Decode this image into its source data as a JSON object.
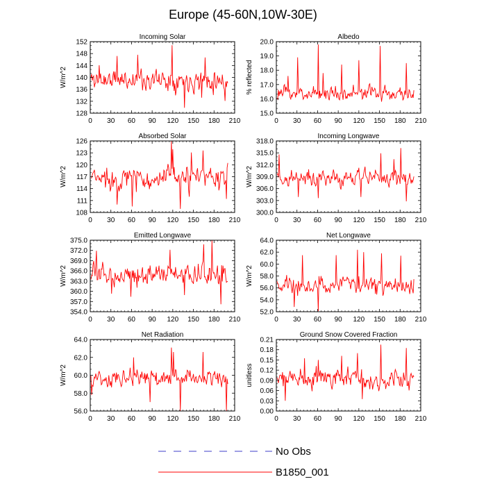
{
  "title": "Europe (45-60N,10W-30E)",
  "colors": {
    "model": "#ff0000",
    "obs": "#3c3cc8",
    "frame": "#000000"
  },
  "legend": [
    {
      "label": "No Obs",
      "style": "dashed",
      "color": "#3c3cc8"
    },
    {
      "label": "B1850_001",
      "style": "solid",
      "color": "#ff0000"
    }
  ],
  "chart_data": [
    {
      "type": "line",
      "title": "Incoming Solar",
      "ylabel": "W/m^2",
      "xlim": [
        0,
        210
      ],
      "xticks": [
        0,
        30,
        60,
        90,
        120,
        150,
        180,
        210
      ],
      "ylim": [
        128,
        152
      ],
      "yticks": [
        "128",
        "132",
        "136",
        "140",
        "144",
        "148",
        "152"
      ],
      "n": 200,
      "mean": 139.3,
      "amp": 3.2,
      "seed": 11,
      "peaks": [
        [
          118,
          150.8
        ],
        [
          136,
          129.8
        ],
        [
          195,
          132.1
        ],
        [
          68,
          147.6
        ],
        [
          166,
          146.7
        ],
        [
          38,
          147.2
        ],
        [
          161,
          133.2
        ],
        [
          12,
          144.1
        ]
      ],
      "series": [
        {
          "name": "B1850_001",
          "color": "#ff0000"
        }
      ]
    },
    {
      "type": "line",
      "title": "Albedo",
      "ylabel": "% reflected",
      "xlim": [
        0,
        210
      ],
      "xticks": [
        0,
        30,
        60,
        90,
        120,
        150,
        180,
        210
      ],
      "ylim": [
        15,
        20
      ],
      "yticks": [
        "15.0",
        "16.0",
        "17.0",
        "18.0",
        "19.0",
        "20.0"
      ],
      "n": 200,
      "mean": 16.4,
      "amp": 0.45,
      "seed": 23,
      "peaks": [
        [
          60,
          19.8
        ],
        [
          150,
          19.7
        ],
        [
          30,
          18.9
        ],
        [
          119,
          18.7
        ],
        [
          94,
          18.4
        ],
        [
          188,
          18.5
        ],
        [
          67,
          17.8
        ],
        [
          16,
          17.6
        ]
      ],
      "series": [
        {
          "name": "B1850_001",
          "color": "#ff0000"
        }
      ]
    },
    {
      "type": "line",
      "title": "Absorbed Solar",
      "ylabel": "W/m^2",
      "xlim": [
        0,
        210
      ],
      "xticks": [
        0,
        30,
        60,
        90,
        120,
        150,
        180,
        210
      ],
      "ylim": [
        108,
        126
      ],
      "yticks": [
        "108",
        "111",
        "114",
        "117",
        "120",
        "123",
        "126"
      ],
      "n": 200,
      "mean": 116.6,
      "amp": 2.6,
      "seed": 37,
      "peaks": [
        [
          117,
          126.0
        ],
        [
          130,
          108.9
        ],
        [
          163,
          123.6
        ],
        [
          60,
          109.5
        ],
        [
          146,
          123.1
        ],
        [
          38,
          110.0
        ],
        [
          119,
          123.9
        ],
        [
          197,
          111.4
        ]
      ],
      "series": [
        {
          "name": "B1850_001",
          "color": "#ff0000"
        }
      ]
    },
    {
      "type": "line",
      "title": "Incoming Longwave",
      "ylabel": "W/m^2",
      "xlim": [
        0,
        210
      ],
      "xticks": [
        0,
        30,
        60,
        90,
        120,
        150,
        180,
        210
      ],
      "ylim": [
        300,
        318
      ],
      "yticks": [
        "300.0",
        "303.0",
        "306.0",
        "309.0",
        "312.0",
        "315.0",
        "318.0"
      ],
      "n": 200,
      "mean": 308.6,
      "amp": 1.9,
      "seed": 41,
      "peaks": [
        [
          180,
          316.2
        ],
        [
          3,
          314.6
        ],
        [
          188,
          302.8
        ],
        [
          151,
          314.9
        ],
        [
          60,
          303.6
        ],
        [
          31,
          303.9
        ],
        [
          122,
          303.9
        ],
        [
          170,
          313.4
        ]
      ],
      "series": [
        {
          "name": "B1850_001",
          "color": "#ff0000"
        }
      ]
    },
    {
      "type": "line",
      "title": "Emitted Longwave",
      "ylabel": "W/m^2",
      "xlim": [
        0,
        210
      ],
      "xticks": [
        0,
        30,
        60,
        90,
        120,
        150,
        180,
        210
      ],
      "ylim": [
        354,
        375
      ],
      "yticks": [
        "354.0",
        "357.0",
        "360.0",
        "363.0",
        "366.0",
        "369.0",
        "372.0",
        "375.0"
      ],
      "n": 200,
      "mean": 365.0,
      "amp": 2.6,
      "seed": 53,
      "peaks": [
        [
          176,
          375.0
        ],
        [
          189,
          356.2
        ],
        [
          164,
          373.8
        ],
        [
          58,
          358.4
        ],
        [
          115,
          372.2
        ],
        [
          30,
          359.3
        ],
        [
          8,
          371.9
        ],
        [
          136,
          358.9
        ]
      ],
      "series": [
        {
          "name": "B1850_001",
          "color": "#ff0000"
        }
      ]
    },
    {
      "type": "line",
      "title": "Net Longwave",
      "ylabel": "W/m^2",
      "xlim": [
        0,
        210
      ],
      "xticks": [
        0,
        30,
        60,
        90,
        120,
        150,
        180,
        210
      ],
      "ylim": [
        52,
        64
      ],
      "yticks": [
        "52.0",
        "54.0",
        "56.0",
        "58.0",
        "60.0",
        "62.0",
        "64.0"
      ],
      "n": 200,
      "mean": 56.4,
      "amp": 1.4,
      "seed": 67,
      "peaks": [
        [
          117,
          62.4
        ],
        [
          60,
          52.1
        ],
        [
          37,
          61.5
        ],
        [
          86,
          61.5
        ],
        [
          152,
          61.8
        ],
        [
          25,
          52.8
        ],
        [
          126,
          62.0
        ],
        [
          180,
          61.4
        ]
      ],
      "series": [
        {
          "name": "B1850_001",
          "color": "#ff0000"
        }
      ]
    },
    {
      "type": "line",
      "title": "Net Radiation",
      "ylabel": "W/m^2",
      "xlim": [
        0,
        210
      ],
      "xticks": [
        0,
        30,
        60,
        90,
        120,
        150,
        180,
        210
      ],
      "ylim": [
        56,
        64
      ],
      "yticks": [
        "56.0",
        "58.0",
        "60.0",
        "62.0",
        "64.0"
      ],
      "n": 200,
      "mean": 59.7,
      "amp": 0.8,
      "seed": 79,
      "peaks": [
        [
          117,
          63.1
        ],
        [
          130,
          56.0
        ],
        [
          197,
          56.0
        ],
        [
          163,
          62.6
        ],
        [
          86,
          57.0
        ],
        [
          1,
          57.8
        ],
        [
          120,
          62.6
        ],
        [
          62,
          62.0
        ]
      ],
      "series": [
        {
          "name": "B1850_001",
          "color": "#ff0000"
        }
      ]
    },
    {
      "type": "line",
      "title": "Ground Snow Covered Fraction",
      "ylabel": "unitless",
      "xlim": [
        0,
        210
      ],
      "xticks": [
        0,
        30,
        60,
        90,
        120,
        150,
        180,
        210
      ],
      "ylim": [
        0,
        0.21
      ],
      "yticks": [
        "0.00",
        "0.03",
        "0.06",
        "0.09",
        "0.12",
        "0.15",
        "0.18",
        "0.21"
      ],
      "n": 200,
      "mean": 0.095,
      "amp": 0.025,
      "seed": 97,
      "peaks": [
        [
          151,
          0.195
        ],
        [
          188,
          0.185
        ],
        [
          124,
          0.035
        ],
        [
          117,
          0.17
        ],
        [
          94,
          0.162
        ],
        [
          40,
          0.155
        ],
        [
          60,
          0.15
        ],
        [
          12,
          0.03
        ]
      ],
      "series": [
        {
          "name": "B1850_001",
          "color": "#ff0000"
        }
      ]
    }
  ]
}
